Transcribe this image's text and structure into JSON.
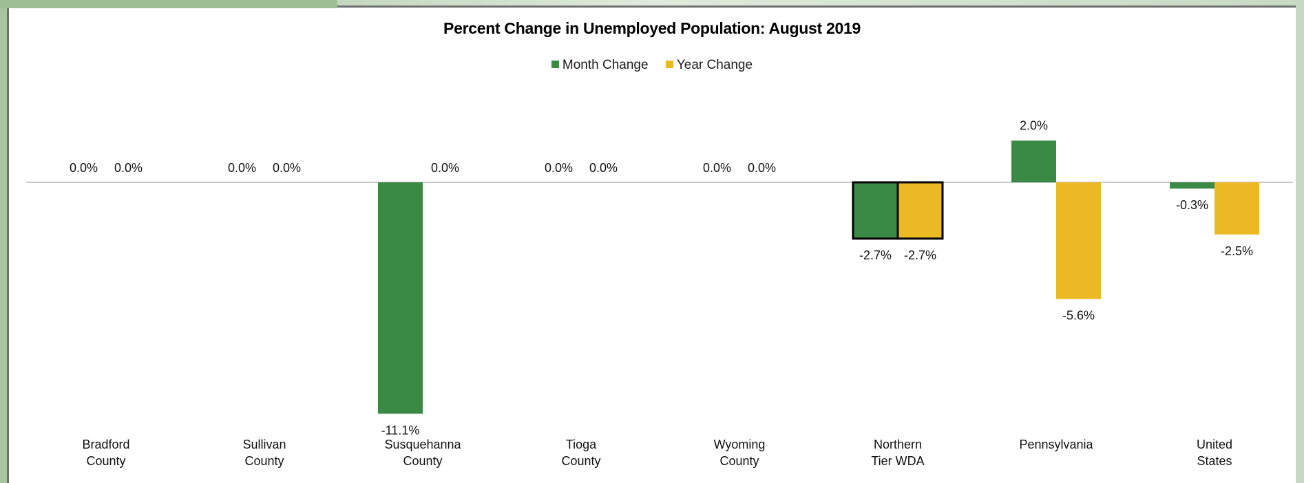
{
  "chart_data": {
    "type": "bar",
    "title": "Percent Change in Unemployed Population: August 2019",
    "categories": [
      [
        "Bradford",
        "County"
      ],
      [
        "Sullivan",
        "County"
      ],
      [
        "Susquehanna",
        "County"
      ],
      [
        "Tioga",
        "County"
      ],
      [
        "Wyoming",
        "County"
      ],
      [
        "Northern",
        "Tier WDA"
      ],
      [
        "Pennsylvania"
      ],
      [
        "United",
        "States"
      ]
    ],
    "series": [
      {
        "name": "Month Change",
        "color": "#3a8a45",
        "values": [
          0.0,
          0.0,
          -11.1,
          0.0,
          0.0,
          -2.7,
          2.0,
          -0.3
        ],
        "labels": [
          "0.0%",
          "0.0%",
          "-11.1%",
          "0.0%",
          "0.0%",
          "-2.7%",
          "2.0%",
          "-0.3%"
        ]
      },
      {
        "name": "Year Change",
        "color": "#ebb923",
        "values": [
          0.0,
          0.0,
          0.0,
          0.0,
          0.0,
          -2.7,
          -5.6,
          -2.5
        ],
        "labels": [
          "0.0%",
          "0.0%",
          "0.0%",
          "0.0%",
          "0.0%",
          "-2.7%",
          "-5.6%",
          "-2.5%"
        ]
      }
    ],
    "highlighted_category": "Northern Tier WDA",
    "ylim": [
      -11.1,
      2.0
    ],
    "xlabel": "",
    "ylabel": "",
    "grid": false,
    "legend_position": "top-center"
  }
}
